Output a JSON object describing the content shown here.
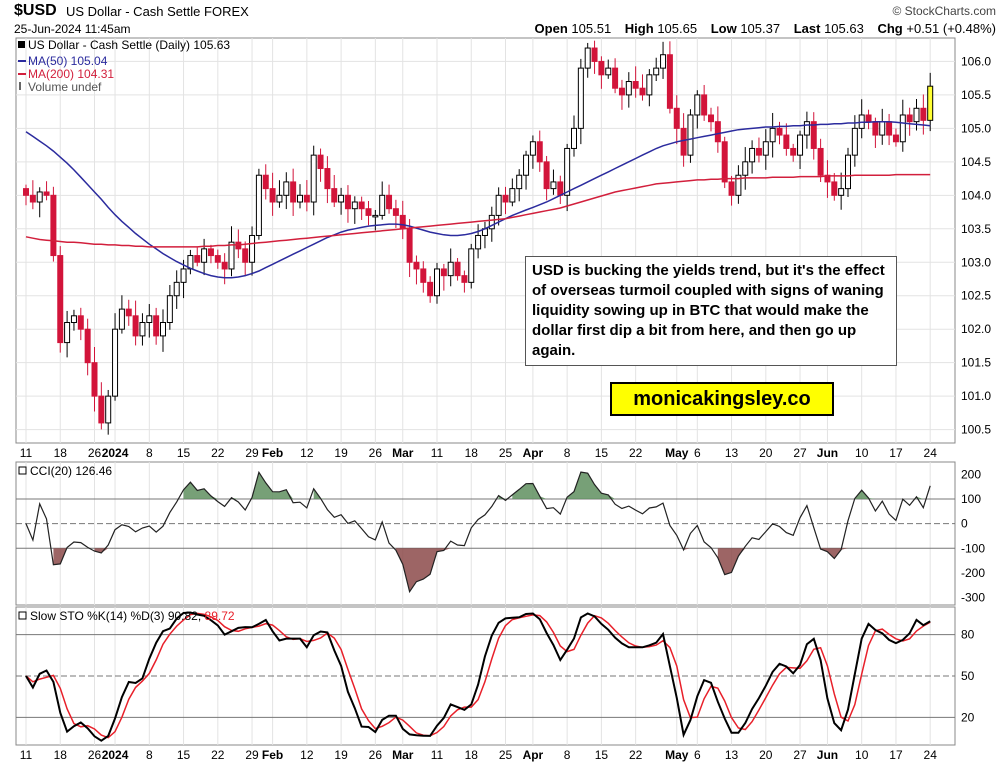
{
  "header": {
    "symbol": "$USD",
    "name": "US Dollar - Cash Settle",
    "exchange": "FOREX",
    "brand": "© StockCharts.com",
    "datetime": "25-Jun-2024 11:45am",
    "open_label": "Open",
    "open": "105.51",
    "high_label": "High",
    "high": "105.65",
    "low_label": "Low",
    "low": "105.37",
    "last_label": "Last",
    "last": "105.63",
    "chg_label": "Chg",
    "chg": "+0.51 (+0.48%)"
  },
  "legend": {
    "main": "US Dollar - Cash Settle (Daily) 105.63",
    "ma50": "MA(50) 105.04",
    "ma200": "MA(200) 104.31",
    "volume": "Volume undef",
    "cci": "CCI(20) 126.46",
    "sto_prefix": "Slow STO %K(14) %D(3) 90.82, ",
    "sto_d": "89.72"
  },
  "annotation": {
    "text": "USD is bucking the yields trend, but it's the effect of overseas turmoil coupled with signs of waning liquidity sowing up in BTC that would make the dollar first dip a bit from here, and then go up again.",
    "site": "monicakingsley.co"
  },
  "colors": {
    "up": "#000000",
    "down": "#d2143a",
    "last": "#ffff33",
    "ma50": "#2b2b9e",
    "ma200": "#d21f3c",
    "cci_fill": "#5f8f5f",
    "cci_neg_fill": "#8c4a4a",
    "sto_k": "#000000",
    "sto_d": "#e8202a",
    "grid": "#e3e3e3"
  },
  "chart_data": [
    {
      "type": "candlestick",
      "title": "US Dollar - Cash Settle (Daily)",
      "y_ticks": [
        100.5,
        101.0,
        101.5,
        102.0,
        102.5,
        103.0,
        103.5,
        104.0,
        104.5,
        105.0,
        105.5,
        106.0
      ],
      "ylim": [
        100.3,
        106.35
      ],
      "x_tick_labels": [
        {
          "label": "11",
          "i": 0
        },
        {
          "label": "18",
          "i": 5
        },
        {
          "label": "26",
          "i": 10
        },
        {
          "label": "2024",
          "i": 13,
          "bold": true
        },
        {
          "label": "8",
          "i": 18
        },
        {
          "label": "15",
          "i": 23
        },
        {
          "label": "22",
          "i": 28
        },
        {
          "label": "29",
          "i": 33
        },
        {
          "label": "Feb",
          "i": 36,
          "bold": true
        },
        {
          "label": "12",
          "i": 41
        },
        {
          "label": "19",
          "i": 46
        },
        {
          "label": "26",
          "i": 51
        },
        {
          "label": "Mar",
          "i": 55,
          "bold": true
        },
        {
          "label": "11",
          "i": 60
        },
        {
          "label": "18",
          "i": 65
        },
        {
          "label": "25",
          "i": 70
        },
        {
          "label": "Apr",
          "i": 74,
          "bold": true
        },
        {
          "label": "8",
          "i": 79
        },
        {
          "label": "15",
          "i": 84
        },
        {
          "label": "22",
          "i": 89
        },
        {
          "label": "May",
          "i": 95,
          "bold": true
        },
        {
          "label": "6",
          "i": 98
        },
        {
          "label": "13",
          "i": 103
        },
        {
          "label": "20",
          "i": 108
        },
        {
          "label": "27",
          "i": 113
        },
        {
          "label": "Jun",
          "i": 117,
          "bold": true
        },
        {
          "label": "10",
          "i": 122
        },
        {
          "label": "17",
          "i": 127
        },
        {
          "label": "24",
          "i": 132
        }
      ],
      "close": [
        104.0,
        103.9,
        104.05,
        104.0,
        103.1,
        101.8,
        102.1,
        102.2,
        102.0,
        101.5,
        101.0,
        100.6,
        101.0,
        102.0,
        102.3,
        102.2,
        101.9,
        102.1,
        102.2,
        101.9,
        102.1,
        102.5,
        102.7,
        102.9,
        103.1,
        103.0,
        103.2,
        103.1,
        103.0,
        102.9,
        103.3,
        103.2,
        103.0,
        103.4,
        104.3,
        104.1,
        103.9,
        104.0,
        104.2,
        103.9,
        104.0,
        103.9,
        104.6,
        104.4,
        104.1,
        103.9,
        104.0,
        103.8,
        103.9,
        103.8,
        103.7,
        103.7,
        104.0,
        103.8,
        103.7,
        103.5,
        103.0,
        102.9,
        102.7,
        102.5,
        102.9,
        102.8,
        103.0,
        102.8,
        102.7,
        103.2,
        103.4,
        103.5,
        103.7,
        104.0,
        103.9,
        104.1,
        104.3,
        104.6,
        104.8,
        104.5,
        104.1,
        104.2,
        104.0,
        104.7,
        105.0,
        105.9,
        106.2,
        106.0,
        105.8,
        105.9,
        105.6,
        105.5,
        105.7,
        105.6,
        105.5,
        105.8,
        105.9,
        106.1,
        105.3,
        105.0,
        104.6,
        105.2,
        105.5,
        105.2,
        105.1,
        104.8,
        104.2,
        104.0,
        104.3,
        104.5,
        104.7,
        104.6,
        104.8,
        105.0,
        104.9,
        104.7,
        104.6,
        104.9,
        105.1,
        104.7,
        104.3,
        104.2,
        104.0,
        104.1,
        104.6,
        105.0,
        105.2,
        105.1,
        104.9,
        105.1,
        104.9,
        104.8,
        105.2,
        105.1,
        105.3,
        105.12,
        105.63
      ],
      "ma50": [
        104.95,
        104.88,
        104.81,
        104.74,
        104.66,
        104.57,
        104.48,
        104.38,
        104.27,
        104.16,
        104.05,
        103.94,
        103.82,
        103.71,
        103.61,
        103.52,
        103.43,
        103.35,
        103.27,
        103.2,
        103.13,
        103.07,
        103.01,
        102.96,
        102.91,
        102.87,
        102.83,
        102.8,
        102.78,
        102.77,
        102.77,
        102.78,
        102.8,
        102.83,
        102.87,
        102.92,
        102.97,
        103.02,
        103.07,
        103.12,
        103.17,
        103.22,
        103.27,
        103.32,
        103.37,
        103.41,
        103.45,
        103.48,
        103.5,
        103.52,
        103.54,
        103.55,
        103.56,
        103.57,
        103.57,
        103.56,
        103.54,
        103.51,
        103.48,
        103.45,
        103.43,
        103.41,
        103.4,
        103.4,
        103.41,
        103.43,
        103.46,
        103.5,
        103.55,
        103.6,
        103.65,
        103.7,
        103.74,
        103.78,
        103.82,
        103.86,
        103.9,
        103.95,
        104.0,
        104.05,
        104.1,
        104.15,
        104.2,
        104.25,
        104.3,
        104.35,
        104.4,
        104.45,
        104.5,
        104.55,
        104.6,
        104.65,
        104.7,
        104.74,
        104.77,
        104.8,
        104.82,
        104.84,
        104.86,
        104.88,
        104.9,
        104.92,
        104.94,
        104.96,
        104.98,
        104.99,
        105.0,
        105.01,
        105.02,
        105.02,
        105.03,
        105.03,
        105.04,
        105.04,
        105.05,
        105.05,
        105.06,
        105.06,
        105.07,
        105.07,
        105.08,
        105.08,
        105.09,
        105.09,
        105.1,
        105.1,
        105.1,
        105.09,
        105.08,
        105.07,
        105.06,
        105.05,
        105.04
      ],
      "ma200": [
        103.38,
        103.36,
        103.34,
        103.33,
        103.32,
        103.31,
        103.3,
        103.3,
        103.29,
        103.28,
        103.27,
        103.27,
        103.26,
        103.26,
        103.25,
        103.25,
        103.24,
        103.24,
        103.23,
        103.23,
        103.23,
        103.23,
        103.23,
        103.23,
        103.23,
        103.23,
        103.24,
        103.24,
        103.25,
        103.25,
        103.26,
        103.26,
        103.27,
        103.28,
        103.29,
        103.3,
        103.31,
        103.32,
        103.33,
        103.34,
        103.35,
        103.36,
        103.37,
        103.38,
        103.39,
        103.4,
        103.41,
        103.42,
        103.43,
        103.44,
        103.45,
        103.46,
        103.47,
        103.48,
        103.49,
        103.5,
        103.51,
        103.52,
        103.53,
        103.54,
        103.55,
        103.56,
        103.57,
        103.58,
        103.59,
        103.6,
        103.61,
        103.62,
        103.63,
        103.64,
        103.65,
        103.67,
        103.69,
        103.71,
        103.73,
        103.75,
        103.77,
        103.79,
        103.81,
        103.84,
        103.87,
        103.9,
        103.93,
        103.96,
        103.99,
        104.02,
        104.05,
        104.07,
        104.09,
        104.11,
        104.13,
        104.15,
        104.17,
        104.18,
        104.19,
        104.2,
        104.21,
        104.22,
        104.23,
        104.23,
        104.24,
        104.24,
        104.25,
        104.25,
        104.25,
        104.26,
        104.26,
        104.26,
        104.26,
        104.27,
        104.27,
        104.27,
        104.27,
        104.28,
        104.28,
        104.28,
        104.28,
        104.29,
        104.29,
        104.29,
        104.29,
        104.3,
        104.3,
        104.3,
        104.3,
        104.3,
        104.3,
        104.31,
        104.31,
        104.31,
        104.31,
        104.31,
        104.31
      ]
    },
    {
      "type": "line",
      "title": "CCI(20)",
      "y_ticks": [
        -300,
        -200,
        -100,
        0,
        100,
        200
      ],
      "ylim": [
        -330,
        250
      ],
      "reference_lines": [
        100,
        0,
        -100
      ],
      "last_value": 126.46
    },
    {
      "type": "line",
      "title": "Slow STO %K(14) %D(3)",
      "series": [
        {
          "name": "%K",
          "last": 90.82
        },
        {
          "name": "%D",
          "last": 89.72
        }
      ],
      "y_ticks": [
        20,
        50,
        80
      ],
      "ylim": [
        0,
        100
      ],
      "reference_lines": [
        80,
        50,
        20
      ]
    }
  ]
}
